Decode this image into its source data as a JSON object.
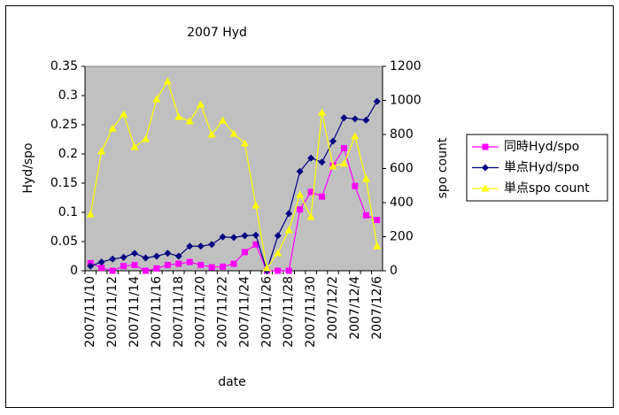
{
  "chart_data": {
    "type": "line",
    "title": "2007 Hyd",
    "x_label": "date",
    "y_label": "Hyd/spo",
    "y2_label": "spo count",
    "categories": [
      "2007/11/10",
      null,
      "2007/11/12",
      null,
      "2007/11/14",
      null,
      "2007/11/16",
      null,
      "2007/11/18",
      null,
      "2007/11/20",
      null,
      "2007/11/22",
      null,
      "2007/11/24",
      null,
      "2007/11/26",
      null,
      "2007/11/28",
      null,
      "2007/11/30",
      null,
      "2007/12/2",
      null,
      "2007/12/4",
      null,
      "2007/12/6"
    ],
    "series": [
      {
        "name": "同時Hyd/spo",
        "color": "#ff00ff",
        "marker": "square",
        "values": [
          0.013,
          0.005,
          0.0,
          0.008,
          0.01,
          0.0,
          0.004,
          0.01,
          0.012,
          0.015,
          0.01,
          0.006,
          0.007,
          0.012,
          0.032,
          0.045,
          0.0,
          0.0,
          0.0,
          0.105,
          0.135,
          0.127,
          0.18,
          0.21,
          0.145,
          0.095,
          0.087
        ]
      },
      {
        "name": "単点Hyd/spo",
        "color": "#000080",
        "marker": "diamond",
        "values": [
          0.008,
          0.015,
          0.02,
          0.023,
          0.03,
          0.022,
          0.025,
          0.03,
          0.025,
          0.042,
          0.042,
          0.045,
          0.058,
          0.057,
          0.06,
          0.061,
          0.0,
          0.06,
          0.098,
          0.17,
          0.193,
          0.186,
          0.222,
          0.262,
          0.26,
          0.258,
          0.29
        ]
      },
      {
        "name": "単点spo count",
        "color": "#ffff00",
        "marker": "triangle",
        "axis": "y2",
        "values": [
          332,
          701,
          836,
          919,
          727,
          774,
          1008,
          1112,
          904,
          878,
          977,
          800,
          883,
          805,
          748,
          384,
          16,
          104,
          239,
          447,
          317,
          930,
          613,
          629,
          790,
          540,
          145
        ]
      }
    ],
    "ylim": [
      0,
      0.35
    ],
    "yticks": [
      {
        "value": 0,
        "label": "0"
      },
      0.05,
      0.1,
      0.15,
      0.2,
      0.25,
      0.3,
      0.35
    ],
    "y2lim": [
      0,
      1200
    ],
    "y2ticks": [
      0,
      200,
      400,
      600,
      800,
      1000,
      1200
    ],
    "grid": false,
    "legend": "right",
    "plot_background": "#c0c0c0"
  }
}
